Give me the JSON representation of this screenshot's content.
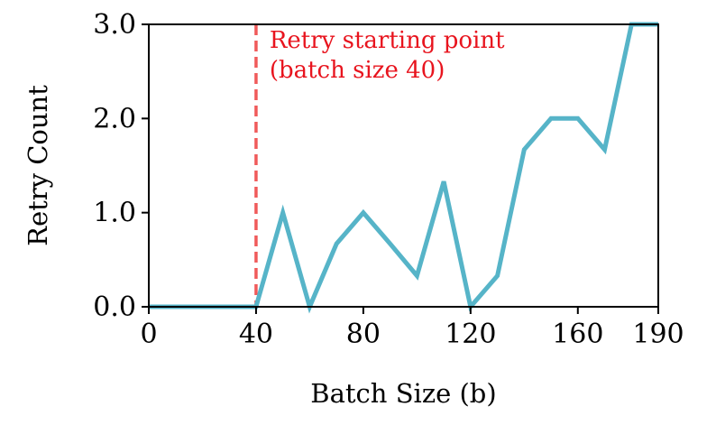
{
  "chart_data": {
    "type": "line",
    "xlabel": "Batch Size (b)",
    "ylabel": "Retry Count",
    "xlim": [
      0,
      190
    ],
    "ylim": [
      0,
      3.0
    ],
    "xticks": [
      0,
      40,
      80,
      120,
      160,
      190
    ],
    "yticks": [
      0.0,
      1.0,
      2.0,
      3.0
    ],
    "xtick_labels": [
      "0",
      "40",
      "80",
      "120",
      "160",
      "190"
    ],
    "ytick_labels": [
      "0.0",
      "1.0",
      "2.0",
      "3.0"
    ],
    "grid": false,
    "series": [
      {
        "color": "#56b4c8",
        "x": [
          0,
          10,
          20,
          30,
          40,
          50,
          60,
          70,
          80,
          90,
          100,
          110,
          120,
          130,
          140,
          150,
          160,
          170,
          180,
          190
        ],
        "y": [
          0,
          0,
          0,
          0,
          0,
          1.0,
          0,
          0.67,
          1.0,
          0.67,
          0.33,
          1.33,
          0,
          0.33,
          1.67,
          2.0,
          2.0,
          1.67,
          3.0,
          3.0
        ]
      }
    ],
    "vline": {
      "x": 40,
      "color": "#f05a5a",
      "style": "dashed"
    },
    "annotation": {
      "lines": [
        "Retry starting point",
        "(batch size 40)"
      ],
      "color": "#e8141e",
      "anchor_x": 45,
      "anchor_y": 2.75
    }
  }
}
